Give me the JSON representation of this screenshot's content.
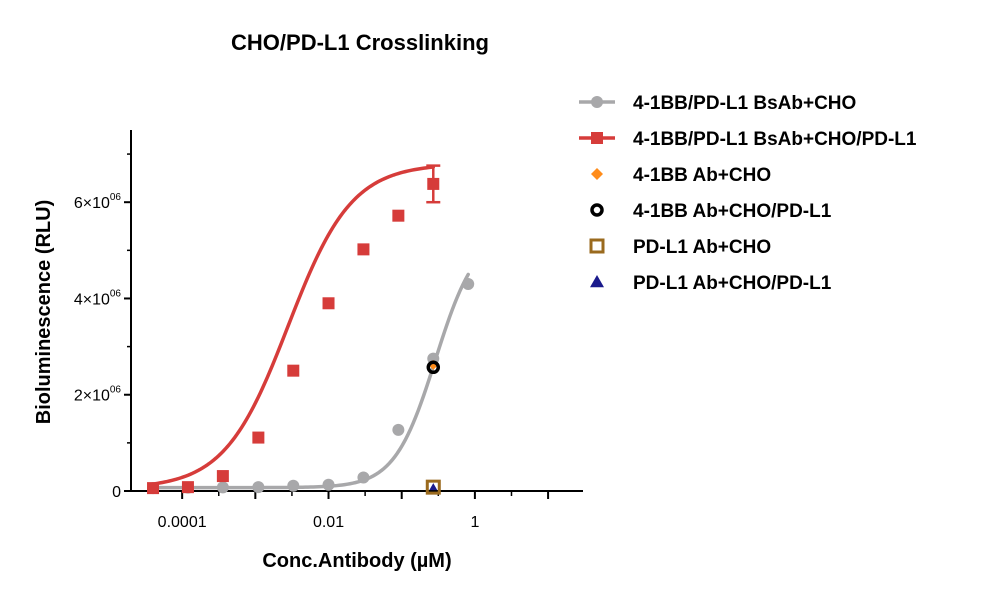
{
  "chart_data": {
    "type": "scatter",
    "title": "CHO/PD-L1  Crosslinking",
    "xlabel": "Conc.Antibody (µM)",
    "ylabel": "Bioluminescence (RLU)",
    "xscale": "log",
    "xlim": [
      2e-05,
      30
    ],
    "ylim": [
      0,
      7500000
    ],
    "x_ticks": [
      {
        "value": 0.0001,
        "label": "0.0001"
      },
      {
        "value": 0.01,
        "label": "0.01"
      },
      {
        "value": 1,
        "label": "1"
      }
    ],
    "y_ticks": [
      {
        "value": 0,
        "base": "0",
        "exp": ""
      },
      {
        "value": 2000000,
        "base": "2×10",
        "exp": "06"
      },
      {
        "value": 4000000,
        "base": "4×10",
        "exp": "06"
      },
      {
        "value": 6000000,
        "base": "6×10",
        "exp": "06"
      }
    ],
    "legend_position": "right",
    "series": [
      {
        "name": "4-1BB/PD-L1 BsAb+CHO",
        "color": "#a8a8aa",
        "marker": "circle",
        "points": [
          {
            "x": 4e-05,
            "y": 60000
          },
          {
            "x": 0.00012,
            "y": 70000
          },
          {
            "x": 0.00036,
            "y": 75000
          },
          {
            "x": 0.0011,
            "y": 80000
          },
          {
            "x": 0.0033,
            "y": 110000
          },
          {
            "x": 0.01,
            "y": 130000
          },
          {
            "x": 0.03,
            "y": 280000
          },
          {
            "x": 0.09,
            "y": 1270000
          },
          {
            "x": 0.27,
            "y": 2750000
          },
          {
            "x": 0.81,
            "y": 4300000
          }
        ],
        "curve": {
          "bottom": 70000,
          "top": 5400000,
          "ec50": 0.29,
          "hill": 1.55
        }
      },
      {
        "name": "4-1BB/PD-L1 BsAb+CHO/PD-L1",
        "color": "#d63c3a",
        "marker": "square",
        "points": [
          {
            "x": 4e-05,
            "y": 60000
          },
          {
            "x": 0.00012,
            "y": 80000
          },
          {
            "x": 0.00036,
            "y": 310000
          },
          {
            "x": 0.0011,
            "y": 1110000
          },
          {
            "x": 0.0033,
            "y": 2500000
          },
          {
            "x": 0.01,
            "y": 3900000
          },
          {
            "x": 0.03,
            "y": 5020000
          },
          {
            "x": 0.09,
            "y": 5720000
          },
          {
            "x": 0.27,
            "y": 6380000,
            "err": 380000
          }
        ],
        "curve": {
          "bottom": 50000,
          "top": 6800000,
          "ec50": 0.0028,
          "hill": 1.0
        }
      },
      {
        "name": "4-1BB Ab+CHO",
        "color": "#ff8c1a",
        "marker": "diamond",
        "points": [
          {
            "x": 0.27,
            "y": 2620000
          }
        ]
      },
      {
        "name": "4-1BB Ab+CHO/PD-L1",
        "color": "#000000",
        "marker": "open-circle",
        "points": [
          {
            "x": 0.27,
            "y": 2570000
          }
        ]
      },
      {
        "name": "PD-L1 Ab+CHO",
        "color": "#9a6a1e",
        "marker": "open-square",
        "points": [
          {
            "x": 0.27,
            "y": 80000
          }
        ]
      },
      {
        "name": "PD-L1 Ab+CHO/PD-L1",
        "color": "#1a1a8c",
        "marker": "triangle",
        "points": [
          {
            "x": 0.27,
            "y": 80000
          }
        ]
      }
    ]
  }
}
